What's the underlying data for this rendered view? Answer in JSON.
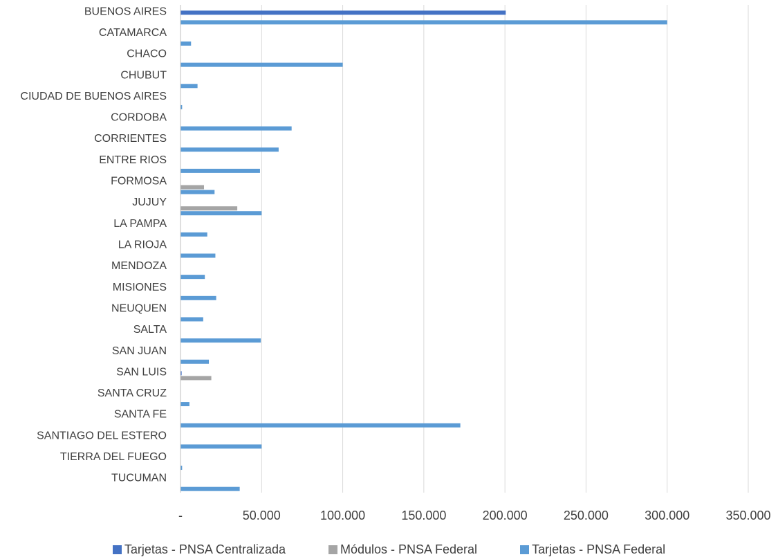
{
  "chart_data": {
    "type": "bar",
    "orientation": "horizontal",
    "categories": [
      "BUENOS AIRES",
      "CATAMARCA",
      "CHACO",
      "CHUBUT",
      "CIUDAD DE BUENOS AIRES",
      "CORDOBA",
      "CORRIENTES",
      "ENTRE RIOS",
      "FORMOSA",
      "JUJUY",
      "LA PAMPA",
      "LA RIOJA",
      "MENDOZA",
      "MISIONES",
      "NEUQUEN",
      "SALTA",
      "SAN JUAN",
      "SAN LUIS",
      "SANTA CRUZ",
      "SANTA FE",
      "SANTIAGO DEL ESTERO",
      "TIERRA DEL FUEGO",
      "TUCUMAN"
    ],
    "series": [
      {
        "name": "Tarjetas - PNSA Centralizada",
        "color": "#4472C4",
        "values": [
          200500,
          0,
          0,
          0,
          0,
          0,
          0,
          0,
          0,
          0,
          0,
          0,
          0,
          0,
          0,
          0,
          0,
          700,
          0,
          0,
          0,
          0,
          0
        ]
      },
      {
        "name": "Módulos - PNSA Federal",
        "color": "#A5A5A5",
        "values": [
          0,
          0,
          0,
          0,
          0,
          0,
          0,
          0,
          14500,
          35000,
          0,
          0,
          0,
          0,
          0,
          0,
          0,
          19000,
          0,
          0,
          0,
          0,
          0
        ]
      },
      {
        "name": "Tarjetas - PNSA Federal",
        "color": "#5B9BD5",
        "values": [
          300000,
          6500,
          100000,
          10500,
          1000,
          68500,
          60500,
          49000,
          21000,
          50000,
          16500,
          21500,
          15000,
          22000,
          14000,
          49500,
          17500,
          0,
          5500,
          172500,
          50000,
          1000,
          36500
        ]
      }
    ],
    "xlim": [
      0,
      350000
    ],
    "x_ticks": [
      {
        "value": 0,
        "label": "-"
      },
      {
        "value": 50000,
        "label": "50.000"
      },
      {
        "value": 100000,
        "label": "100.000"
      },
      {
        "value": 150000,
        "label": "150.000"
      },
      {
        "value": 200000,
        "label": "200.000"
      },
      {
        "value": 250000,
        "label": "250.000"
      },
      {
        "value": 300000,
        "label": "300.000"
      },
      {
        "value": 350000,
        "label": "350.000"
      }
    ],
    "grid": true,
    "legend_position": "bottom"
  }
}
